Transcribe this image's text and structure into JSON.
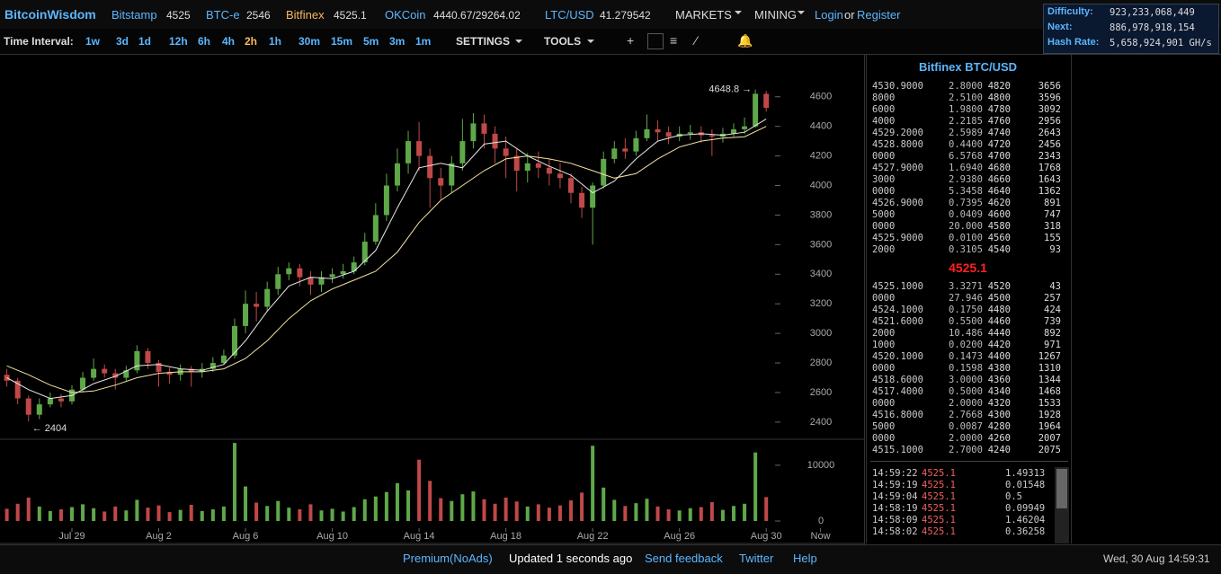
{
  "header": {
    "brand": "BitcoinWisdom",
    "tickers": [
      {
        "name": "Bitstamp",
        "price": "4525"
      },
      {
        "name": "BTC-e",
        "price": "2546"
      },
      {
        "name": "Bitfinex",
        "price": "4525.1"
      },
      {
        "name": "OKCoin",
        "price": "4440.67/29264.02"
      },
      {
        "name": "LTC/USD",
        "price": "41.279542"
      }
    ],
    "menus": [
      "MARKETS",
      "MINING"
    ],
    "login": "Login",
    "or": "or",
    "register": "Register"
  },
  "stats": [
    {
      "label": "Difficulty:",
      "value": "923,233,068,449"
    },
    {
      "label": "Next:",
      "value": "886,978,918,154"
    },
    {
      "label": "Hash Rate:",
      "value": "5,658,924,901 GH/s"
    }
  ],
  "toolbar": {
    "label": "Time Interval:",
    "intervals": [
      "1w",
      "3d",
      "1d",
      "12h",
      "6h",
      "4h",
      "2h",
      "1h",
      "30m",
      "15m",
      "5m",
      "3m",
      "1m"
    ],
    "active": "2h",
    "settings": "SETTINGS",
    "tools": "TOOLS"
  },
  "chart_data": {
    "type": "candlestick",
    "x": [
      -6,
      -5,
      -4,
      -3,
      -2,
      -1,
      0,
      1,
      2,
      3,
      4,
      5,
      6,
      7,
      8,
      9,
      10,
      11,
      12,
      13,
      14,
      15,
      16,
      17,
      18,
      19,
      20,
      21,
      22,
      23,
      24,
      25,
      26,
      27,
      28,
      29,
      30,
      31,
      32,
      33,
      34,
      35,
      36,
      37,
      38,
      39,
      40,
      41,
      42,
      43,
      44,
      45,
      46,
      47,
      48,
      49,
      50,
      51,
      52,
      53,
      54,
      55,
      56,
      57,
      58,
      59,
      60,
      61,
      62,
      63,
      64
    ],
    "ohlc": [
      [
        2720,
        2760,
        2640,
        2680
      ],
      [
        2680,
        2700,
        2520,
        2560
      ],
      [
        2560,
        2580,
        2404,
        2450
      ],
      [
        2450,
        2560,
        2420,
        2520
      ],
      [
        2520,
        2600,
        2500,
        2560
      ],
      [
        2560,
        2590,
        2500,
        2540
      ],
      [
        2540,
        2650,
        2520,
        2620
      ],
      [
        2620,
        2740,
        2600,
        2700
      ],
      [
        2700,
        2830,
        2680,
        2760
      ],
      [
        2760,
        2790,
        2700,
        2730
      ],
      [
        2730,
        2760,
        2620,
        2700
      ],
      [
        2700,
        2780,
        2680,
        2750
      ],
      [
        2750,
        2920,
        2730,
        2880
      ],
      [
        2880,
        2900,
        2760,
        2800
      ],
      [
        2800,
        2820,
        2640,
        2740
      ],
      [
        2740,
        2770,
        2660,
        2720
      ],
      [
        2720,
        2790,
        2680,
        2760
      ],
      [
        2760,
        2780,
        2640,
        2740
      ],
      [
        2740,
        2800,
        2700,
        2760
      ],
      [
        2760,
        2840,
        2740,
        2800
      ],
      [
        2800,
        2890,
        2790,
        2850
      ],
      [
        2850,
        3100,
        2830,
        3050
      ],
      [
        3050,
        3290,
        3000,
        3200
      ],
      [
        3200,
        3280,
        3080,
        3180
      ],
      [
        3180,
        3350,
        3150,
        3300
      ],
      [
        3300,
        3450,
        3260,
        3400
      ],
      [
        3400,
        3480,
        3360,
        3440
      ],
      [
        3440,
        3470,
        3320,
        3380
      ],
      [
        3380,
        3420,
        3260,
        3330
      ],
      [
        3330,
        3420,
        3280,
        3380
      ],
      [
        3380,
        3440,
        3340,
        3400
      ],
      [
        3400,
        3470,
        3370,
        3420
      ],
      [
        3420,
        3520,
        3400,
        3480
      ],
      [
        3480,
        3680,
        3460,
        3620
      ],
      [
        3620,
        3880,
        3600,
        3800
      ],
      [
        3800,
        4080,
        3760,
        4000
      ],
      [
        4000,
        4250,
        3960,
        4150
      ],
      [
        4150,
        4370,
        4080,
        4300
      ],
      [
        4300,
        4430,
        4100,
        4200
      ],
      [
        4200,
        4250,
        3850,
        4050
      ],
      [
        4050,
        4120,
        3900,
        4000
      ],
      [
        4000,
        4200,
        3950,
        4150
      ],
      [
        4150,
        4450,
        4100,
        4300
      ],
      [
        4300,
        4490,
        4250,
        4420
      ],
      [
        4420,
        4480,
        4250,
        4350
      ],
      [
        4350,
        4400,
        4150,
        4250
      ],
      [
        4250,
        4330,
        4050,
        4200
      ],
      [
        4200,
        4250,
        3960,
        4100
      ],
      [
        4100,
        4220,
        4020,
        4150
      ],
      [
        4150,
        4230,
        4050,
        4120
      ],
      [
        4120,
        4180,
        4000,
        4080
      ],
      [
        4080,
        4150,
        3980,
        4050
      ],
      [
        4050,
        4080,
        3880,
        3950
      ],
      [
        3950,
        3990,
        3780,
        3850
      ],
      [
        3850,
        4020,
        3600,
        4000
      ],
      [
        4000,
        4230,
        3980,
        4180
      ],
      [
        4180,
        4300,
        4150,
        4250
      ],
      [
        4250,
        4320,
        4180,
        4230
      ],
      [
        4230,
        4370,
        4200,
        4320
      ],
      [
        4320,
        4480,
        4300,
        4380
      ],
      [
        4380,
        4440,
        4300,
        4360
      ],
      [
        4360,
        4400,
        4280,
        4330
      ],
      [
        4330,
        4400,
        4300,
        4350
      ],
      [
        4350,
        4410,
        4310,
        4360
      ],
      [
        4360,
        4400,
        4290,
        4340
      ],
      [
        4340,
        4380,
        4200,
        4330
      ],
      [
        4330,
        4390,
        4290,
        4350
      ],
      [
        4350,
        4420,
        4330,
        4380
      ],
      [
        4380,
        4460,
        4350,
        4400
      ],
      [
        4400,
        4648.8,
        4390,
        4620
      ],
      [
        4620,
        4640,
        4500,
        4525.1
      ]
    ],
    "volume": [
      2200,
      3100,
      4200,
      2600,
      1800,
      2100,
      2500,
      3000,
      2300,
      1700,
      2600,
      1900,
      3800,
      2400,
      2800,
      1600,
      2000,
      2900,
      1800,
      2100,
      2600,
      14000,
      6200,
      3300,
      2700,
      3600,
      2400,
      2100,
      3000,
      1900,
      2200,
      1700,
      2500,
      3900,
      4400,
      5200,
      6800,
      5500,
      11000,
      7200,
      4100,
      3600,
      4800,
      5300,
      3900,
      3100,
      4200,
      3500,
      2600,
      3000,
      2400,
      2800,
      3700,
      5100,
      13500,
      6000,
      3800,
      2700,
      3200,
      4000,
      2600,
      2100,
      1900,
      2300,
      2500,
      3400,
      2000,
      2700,
      3100,
      12300,
      4300
    ],
    "ma_x": [
      -6,
      -4,
      -2,
      0,
      2,
      4,
      6,
      8,
      10,
      12,
      14,
      16,
      18,
      20,
      22,
      24,
      26,
      28,
      30,
      32,
      34,
      36,
      38,
      40,
      42,
      44,
      46,
      48,
      50,
      52,
      54,
      56,
      58,
      60,
      62,
      64
    ],
    "ma": [
      {
        "color": "#e8e8e8",
        "values": [
          2700,
          2620,
          2560,
          2580,
          2660,
          2710,
          2780,
          2790,
          2760,
          2750,
          2790,
          2950,
          3150,
          3320,
          3380,
          3370,
          3420,
          3560,
          3850,
          4120,
          4150,
          4120,
          4280,
          4300,
          4200,
          4130,
          4070,
          3950,
          4030,
          4180,
          4300,
          4340,
          4350,
          4340,
          4360,
          4450
        ]
      },
      {
        "color": "#f3e3a3",
        "values": [
          2780,
          2720,
          2650,
          2600,
          2610,
          2650,
          2700,
          2730,
          2740,
          2740,
          2760,
          2830,
          2950,
          3100,
          3220,
          3300,
          3360,
          3420,
          3550,
          3750,
          3900,
          4000,
          4100,
          4180,
          4200,
          4180,
          4150,
          4100,
          4050,
          4080,
          4180,
          4260,
          4300,
          4320,
          4330,
          4400
        ]
      }
    ],
    "up_color": "#5fa84a",
    "down_color": "#c04848",
    "xlim": [
      -6.63,
      73.1
    ],
    "xticks": [
      {
        "value": 0,
        "label": "Jul 29"
      },
      {
        "value": 8,
        "label": "Aug 2"
      },
      {
        "value": 16,
        "label": "Aug 6"
      },
      {
        "value": 24,
        "label": "Aug 10"
      },
      {
        "value": 32,
        "label": "Aug 14"
      },
      {
        "value": 40,
        "label": "Aug 18"
      },
      {
        "value": 48,
        "label": "Aug 22"
      },
      {
        "value": 56,
        "label": "Aug 26"
      },
      {
        "value": 64,
        "label": "Aug 30"
      },
      {
        "value": 69,
        "label": "Now"
      }
    ],
    "ylim": [
      2290,
      4890
    ],
    "yticks": [
      2400,
      2600,
      2800,
      3000,
      3200,
      3400,
      3600,
      3800,
      4000,
      4200,
      4400,
      4600
    ],
    "vlim": [
      -800,
      14500
    ],
    "vticks": [
      0,
      10000
    ],
    "annotations": [
      "4648.8 →",
      "← 2404"
    ]
  },
  "orderbook": {
    "title": "Bitfinex BTC/USD",
    "asks": [
      [
        "4530.9000",
        "2.8000",
        "4820",
        "3656"
      ],
      [
        "8000",
        "2.5100",
        "4800",
        "3596"
      ],
      [
        "6000",
        "1.9800",
        "4780",
        "3092"
      ],
      [
        "4000",
        "2.2185",
        "4760",
        "2956"
      ],
      [
        "4529.2000",
        "2.5989",
        "4740",
        "2643"
      ],
      [
        "4528.8000",
        "0.4400",
        "4720",
        "2456"
      ],
      [
        "0000",
        "6.5768",
        "4700",
        "2343"
      ],
      [
        "4527.9000",
        "1.6940",
        "4680",
        "1768"
      ],
      [
        "3000",
        "2.9380",
        "4660",
        "1643"
      ],
      [
        "0000",
        "5.3458",
        "4640",
        "1362"
      ],
      [
        "4526.9000",
        "0.7395",
        "4620",
        "891"
      ],
      [
        "5000",
        "0.0409",
        "4600",
        "747"
      ],
      [
        "0000",
        "20.000",
        "4580",
        "318"
      ],
      [
        "4525.9000",
        "0.0100",
        "4560",
        "155"
      ],
      [
        "2000",
        "0.3105",
        "4540",
        "93"
      ]
    ],
    "last": "4525.1",
    "bids": [
      [
        "4525.1000",
        "3.3271",
        "4520",
        "43"
      ],
      [
        "0000",
        "27.946",
        "4500",
        "257"
      ],
      [
        "4524.1000",
        "0.1750",
        "4480",
        "424"
      ],
      [
        "4521.6000",
        "0.5500",
        "4460",
        "739"
      ],
      [
        "2000",
        "10.486",
        "4440",
        "892"
      ],
      [
        "1000",
        "0.0200",
        "4420",
        "971"
      ],
      [
        "4520.1000",
        "0.1473",
        "4400",
        "1267"
      ],
      [
        "0000",
        "0.1598",
        "4380",
        "1310"
      ],
      [
        "4518.6000",
        "3.0000",
        "4360",
        "1344"
      ],
      [
        "4517.4000",
        "0.5000",
        "4340",
        "1468"
      ],
      [
        "0000",
        "2.0000",
        "4320",
        "1533"
      ],
      [
        "4516.8000",
        "2.7668",
        "4300",
        "1928"
      ],
      [
        "5000",
        "0.0087",
        "4280",
        "1964"
      ],
      [
        "0000",
        "2.0000",
        "4260",
        "2007"
      ],
      [
        "4515.1000",
        "2.7000",
        "4240",
        "2075"
      ]
    ],
    "trades": [
      [
        "14:59:22",
        "4525.1",
        "1.49313"
      ],
      [
        "14:59:19",
        "4525.1",
        "0.01548"
      ],
      [
        "14:59:04",
        "4525.1",
        "0.5"
      ],
      [
        "14:58:19",
        "4525.1",
        "0.09949"
      ],
      [
        "14:58:09",
        "4525.1",
        "1.46204"
      ],
      [
        "14:58:02",
        "4525.1",
        "0.36258"
      ]
    ]
  },
  "footer": {
    "links": [
      "Premium(NoAds)",
      "Updated 1 seconds ago",
      "Send feedback",
      "Twitter",
      "Help"
    ],
    "clock": "Wed, 30 Aug 14:59:31"
  }
}
